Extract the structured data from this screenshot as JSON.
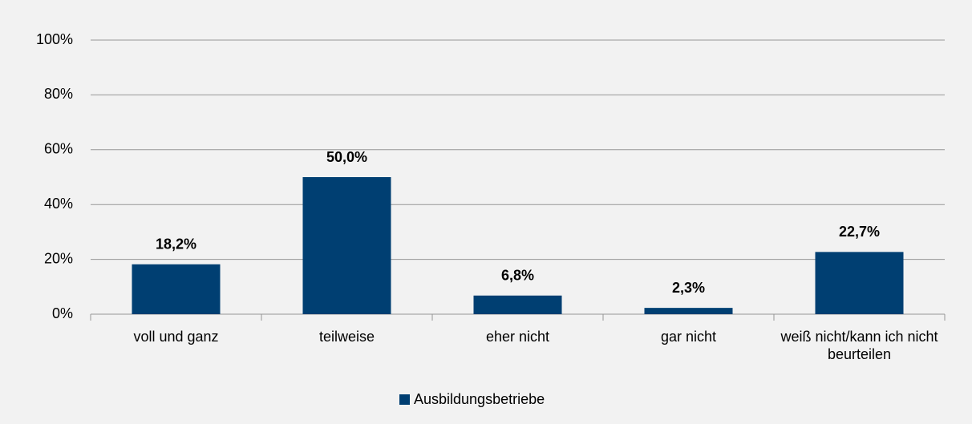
{
  "chart_data": {
    "type": "bar",
    "categories": [
      "voll und ganz",
      "teilweise",
      "eher nicht",
      "gar nicht",
      "weiß nicht/kann ich nicht beurteilen"
    ],
    "series": [
      {
        "name": "Ausbildungsbetriebe",
        "color": "#003f72",
        "values": [
          18.2,
          50.0,
          6.8,
          2.3,
          22.7
        ],
        "value_labels": [
          "18,2%",
          "50,0%",
          "6,8%",
          "2,3%",
          "22,7%"
        ]
      }
    ],
    "ylim": [
      0,
      100
    ],
    "yticks": [
      {
        "value": 0,
        "label": "0%"
      },
      {
        "value": 20,
        "label": "20%"
      },
      {
        "value": 40,
        "label": "40%"
      },
      {
        "value": 60,
        "label": "60%"
      },
      {
        "value": 80,
        "label": "80%"
      },
      {
        "value": 100,
        "label": "100%"
      }
    ],
    "grid": true,
    "legend": "bottom"
  }
}
